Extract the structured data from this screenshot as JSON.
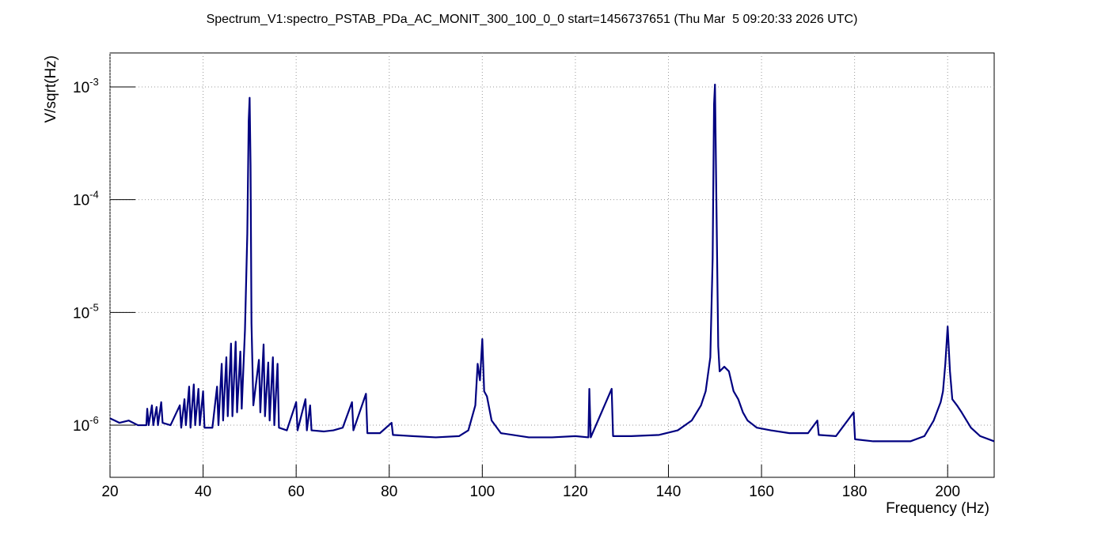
{
  "chart_data": {
    "type": "line",
    "title": "Spectrum_V1:spectro_PSTAB_PDa_AC_MONIT_300_100_0_0 start=1456737651 (Thu Mar  5 09:20:33 2026 UTC)",
    "x_label": "Frequency (Hz)",
    "y_label": "V/sqrt(Hz)",
    "log_y": true,
    "grid": true,
    "xlim": [
      20,
      210
    ],
    "xticks": [
      20,
      40,
      60,
      80,
      100,
      120,
      140,
      160,
      180,
      200
    ],
    "ylim": [
      3.45e-07,
      0.002
    ],
    "yticks": [
      {
        "value": 1e-06,
        "label": "10",
        "exponent": "-6"
      },
      {
        "value": 1e-05,
        "label": "10",
        "exponent": "-5"
      },
      {
        "value": 0.0001,
        "label": "10",
        "exponent": "-4"
      },
      {
        "value": 0.001,
        "label": "10",
        "exponent": "-3"
      }
    ],
    "series": [
      {
        "color": "#000080",
        "x": [
          20,
          21,
          22,
          24,
          26,
          27.8,
          28,
          28.3,
          29,
          29.3,
          30,
          30.3,
          31,
          31.3,
          33,
          35,
          35.3,
          36,
          36.3,
          37,
          37.3,
          38,
          38.3,
          39,
          39.3,
          40,
          40.3,
          42,
          43,
          43.3,
          44,
          44.3,
          45,
          45.3,
          46,
          46.3,
          47,
          47.3,
          48,
          48.3,
          49,
          49.5,
          49.8,
          50,
          50.2,
          50.4,
          50.8,
          52,
          52.3,
          53,
          53.3,
          54,
          54.3,
          55,
          55.3,
          56,
          56.3,
          58,
          60,
          60.3,
          62,
          62.3,
          63,
          63.3,
          66,
          68,
          70,
          72,
          72.3,
          75,
          75.3,
          78,
          80.5,
          80.8,
          85,
          90,
          95,
          97,
          98.5,
          99,
          99.5,
          100,
          100.4,
          101,
          102,
          104,
          110,
          115,
          120,
          122.8,
          123,
          123.3,
          127.8,
          128.1,
          132,
          138,
          142,
          145,
          147,
          148,
          149,
          149.5,
          149.8,
          150,
          150.3,
          150.7,
          151,
          152,
          153,
          154,
          155,
          156,
          157,
          159,
          162,
          166,
          170,
          172,
          172.3,
          176,
          179.8,
          180.1,
          184,
          188,
          192,
          195,
          197,
          198.5,
          199,
          199.5,
          200,
          200.5,
          201,
          202,
          203,
          205,
          207,
          210
        ],
        "values": [
          1.15e-06,
          1.1e-06,
          1.05e-06,
          1.1e-06,
          1e-06,
          1e-06,
          1.4e-06,
          1e-06,
          1.5e-06,
          1e-06,
          1.45e-06,
          1e-06,
          1.6e-06,
          1.05e-06,
          1e-06,
          1.5e-06,
          9.5e-07,
          1.7e-06,
          1e-06,
          2.2e-06,
          9.5e-07,
          2.3e-06,
          1e-06,
          2.1e-06,
          1e-06,
          2e-06,
          9.5e-07,
          9.5e-07,
          2.2e-06,
          1e-06,
          3.5e-06,
          1.1e-06,
          4e-06,
          1.2e-06,
          5.3e-06,
          1.2e-06,
          5.5e-06,
          1.3e-06,
          4.5e-06,
          1.4e-06,
          7e-06,
          5e-05,
          0.0005,
          0.0008,
          0.0002,
          8e-06,
          1.5e-06,
          3.8e-06,
          1.3e-06,
          5.2e-06,
          1.2e-06,
          3.6e-06,
          1.1e-06,
          4e-06,
          1e-06,
          3.5e-06,
          9.5e-07,
          9e-07,
          1.6e-06,
          9e-07,
          1.7e-06,
          9e-07,
          1.5e-06,
          9e-07,
          8.8e-07,
          9e-07,
          9.5e-07,
          1.6e-06,
          9e-07,
          1.9e-06,
          8.5e-07,
          8.5e-07,
          1.05e-06,
          8.2e-07,
          8e-07,
          7.8e-07,
          8e-07,
          9e-07,
          1.5e-06,
          3.5e-06,
          2.5e-06,
          5.8e-06,
          2e-06,
          1.8e-06,
          1.1e-06,
          8.5e-07,
          7.8e-07,
          7.8e-07,
          8e-07,
          7.8e-07,
          2.1e-06,
          7.8e-07,
          2.1e-06,
          8e-07,
          8e-07,
          8.2e-07,
          9e-07,
          1.1e-06,
          1.5e-06,
          2e-06,
          4e-06,
          3e-05,
          0.0007,
          0.00105,
          0.0001,
          5e-06,
          3e-06,
          3.3e-06,
          3e-06,
          2e-06,
          1.7e-06,
          1.3e-06,
          1.1e-06,
          9.5e-07,
          9e-07,
          8.5e-07,
          8.5e-07,
          1.1e-06,
          8.2e-07,
          8e-07,
          1.3e-06,
          7.5e-07,
          7.2e-07,
          7.2e-07,
          7.2e-07,
          8e-07,
          1.1e-06,
          1.6e-06,
          2e-06,
          3.5e-06,
          7.5e-06,
          3e-06,
          1.7e-06,
          1.5e-06,
          1.3e-06,
          9.5e-07,
          8e-07,
          7.2e-07
        ]
      }
    ]
  }
}
